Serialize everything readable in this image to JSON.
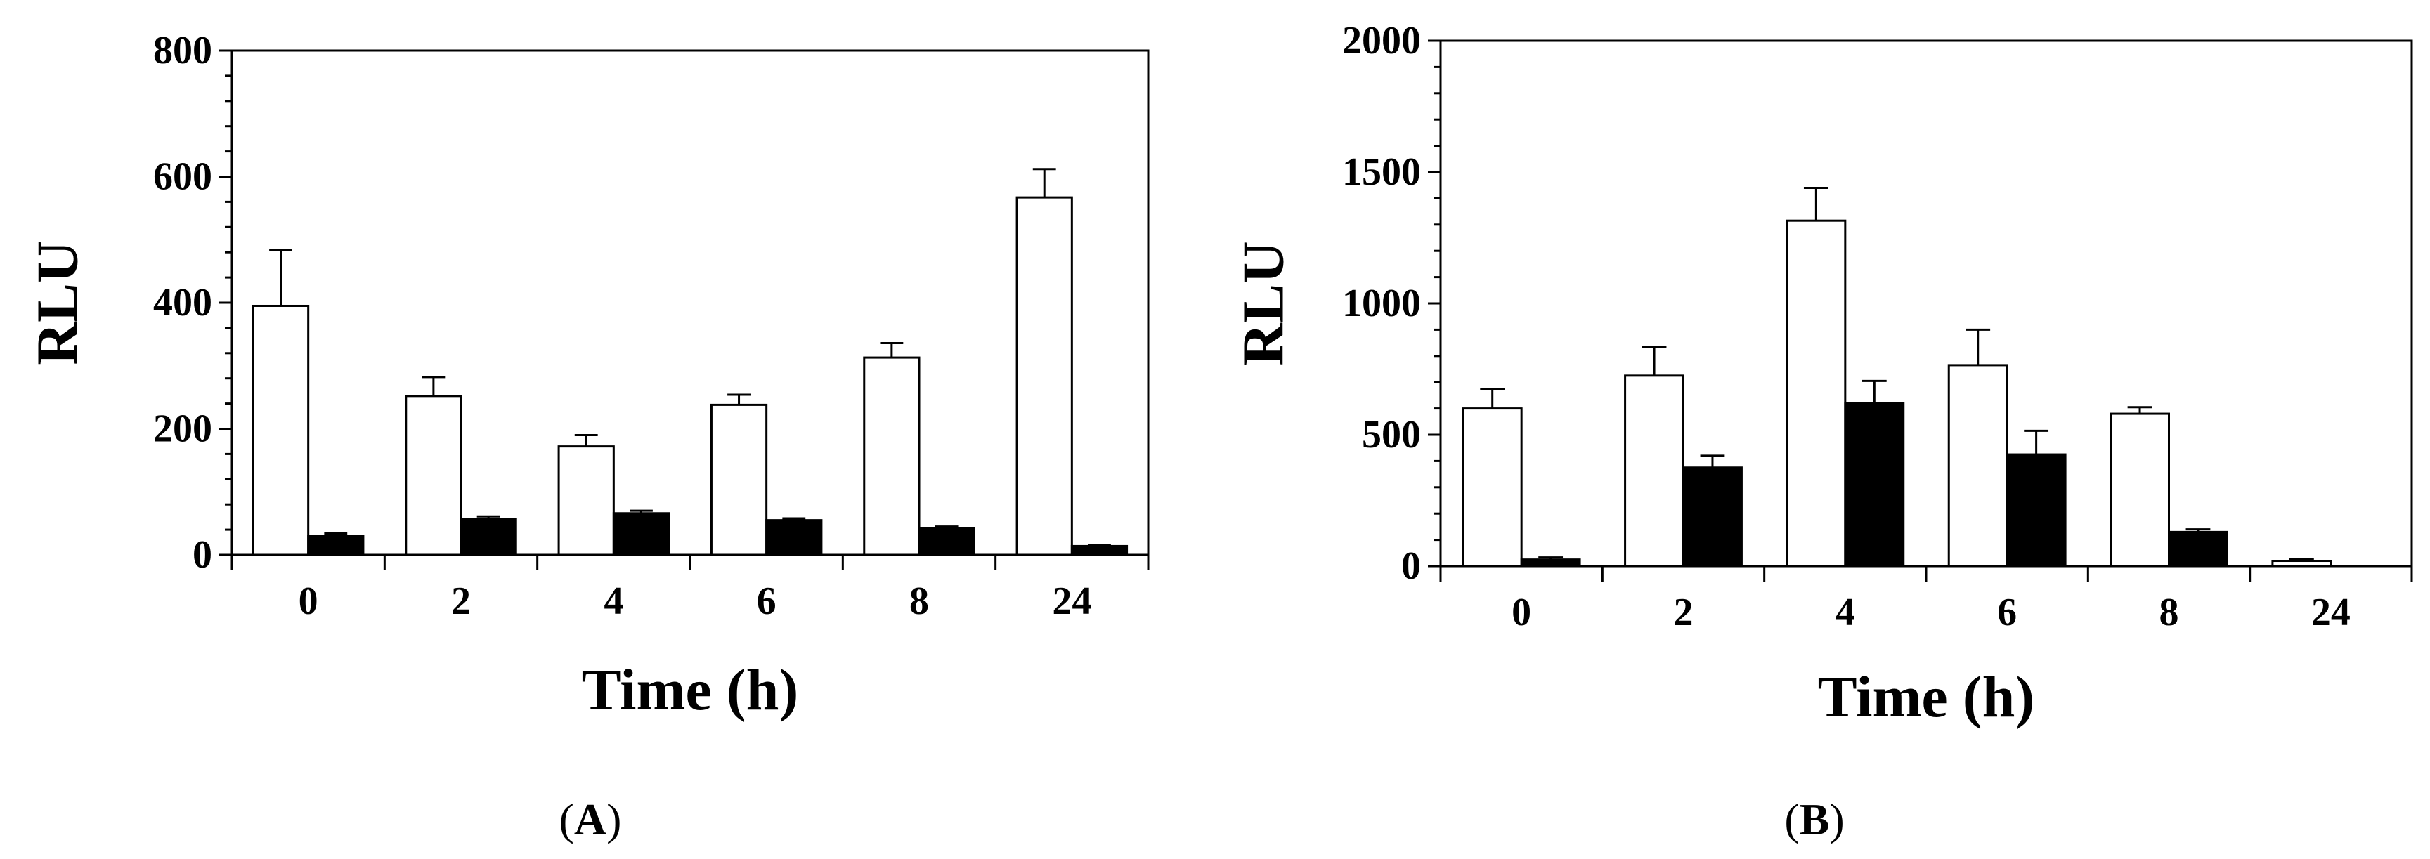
{
  "chart_data": [
    {
      "type": "bar",
      "panel_label": "(A)",
      "panel_letter": "A",
      "categories": [
        "0",
        "2",
        "4",
        "6",
        "8",
        "24"
      ],
      "xlabel": "Time (h)",
      "ylabel": "RLU",
      "ylim": [
        0,
        800
      ],
      "yticks": [
        0,
        200,
        400,
        600,
        800
      ],
      "grid": false,
      "series": [
        {
          "color": "#ffffff",
          "values": [
            395,
            252,
            172,
            238,
            313,
            567
          ],
          "errors": [
            88,
            30,
            18,
            16,
            23,
            45
          ]
        },
        {
          "color": "#000000",
          "values": [
            30,
            57,
            66,
            55,
            42,
            14
          ],
          "errors": [
            4,
            4,
            4,
            3,
            3,
            2
          ]
        }
      ]
    },
    {
      "type": "bar",
      "panel_label": "(B)",
      "panel_letter": "B",
      "categories": [
        "0",
        "2",
        "4",
        "6",
        "8",
        "24"
      ],
      "xlabel": "Time (h)",
      "ylabel": "RLU",
      "ylim": [
        0,
        2000
      ],
      "yticks": [
        0,
        500,
        1000,
        1500,
        2000
      ],
      "grid": false,
      "series": [
        {
          "color": "#ffffff",
          "values": [
            600,
            725,
            1315,
            765,
            580,
            20
          ],
          "errors": [
            75,
            110,
            125,
            135,
            25,
            8
          ]
        },
        {
          "color": "#000000",
          "values": [
            25,
            375,
            620,
            425,
            130,
            0
          ],
          "errors": [
            8,
            45,
            85,
            90,
            10,
            0
          ]
        }
      ]
    }
  ]
}
